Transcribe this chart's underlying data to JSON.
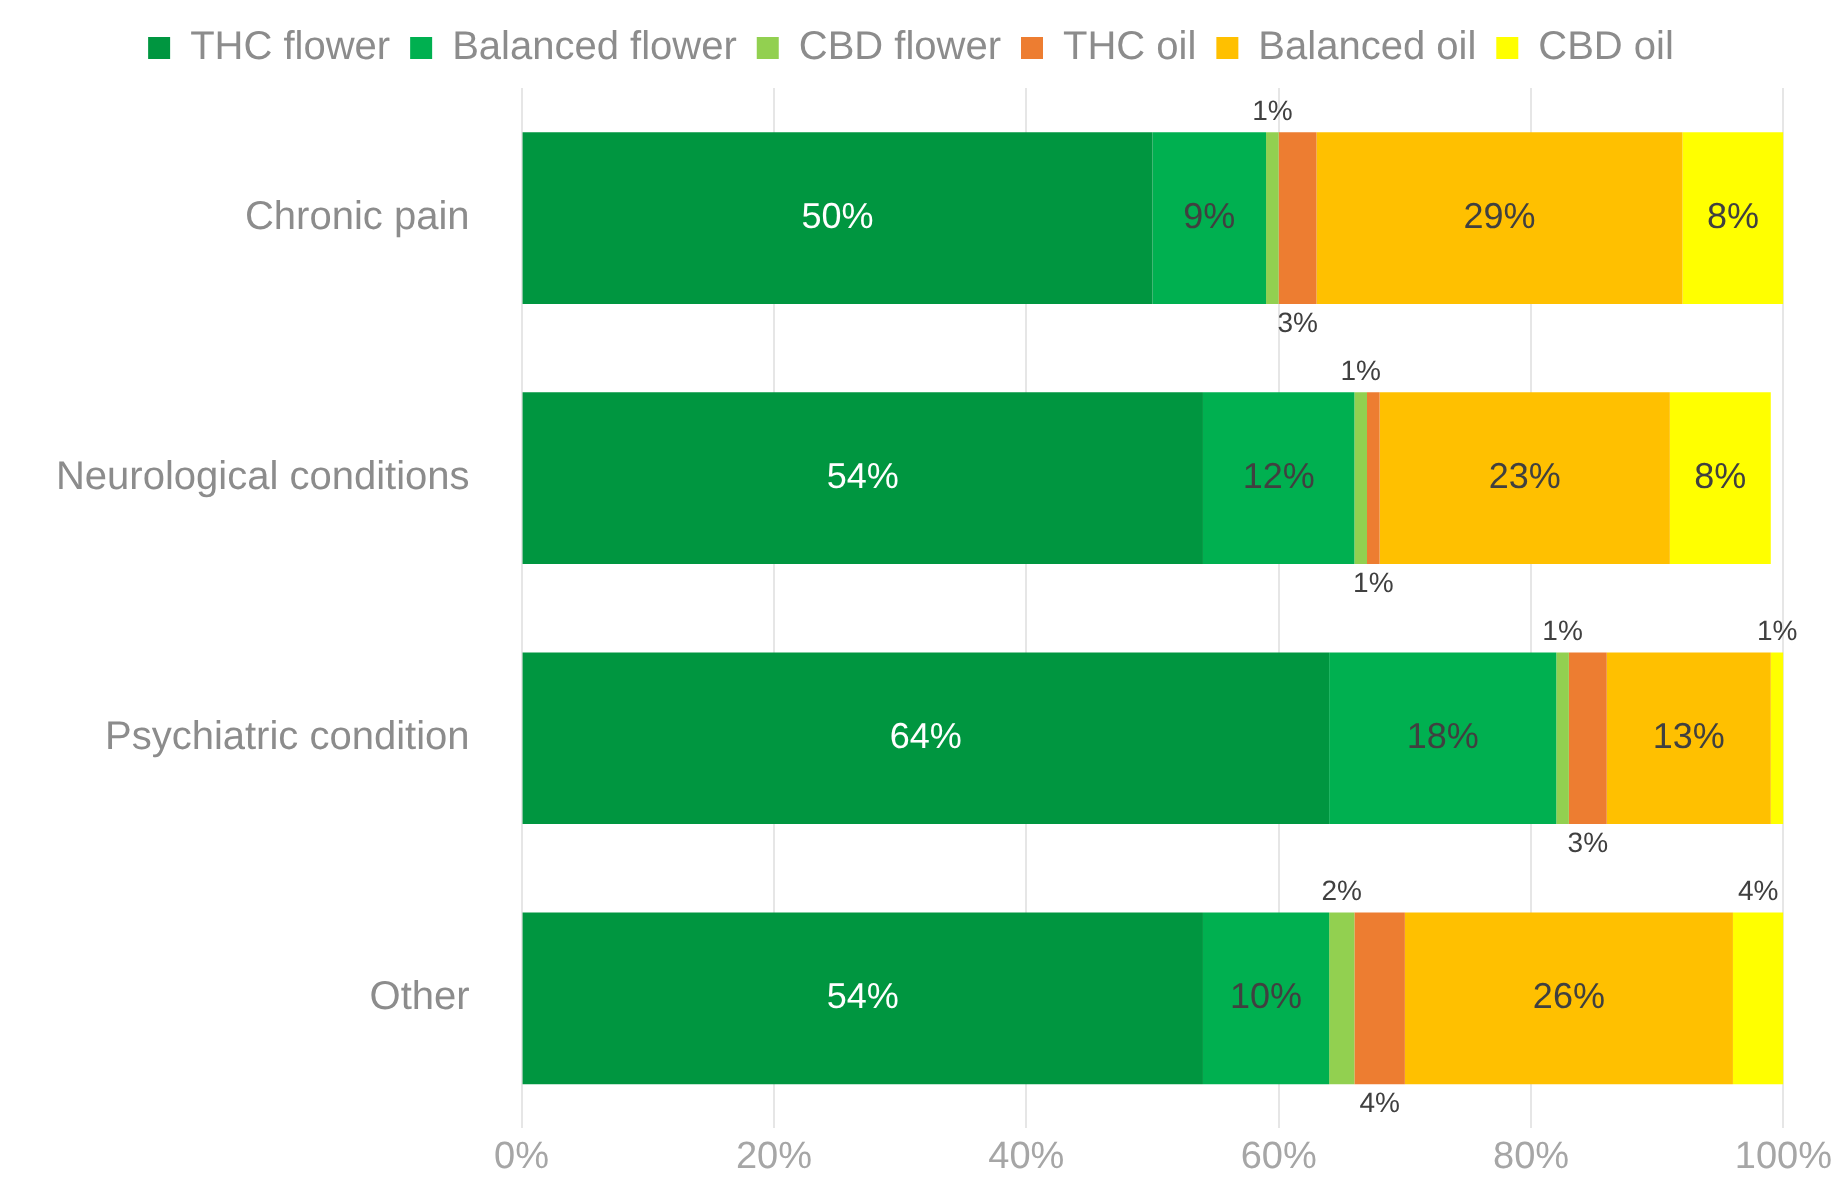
{
  "chart_data": {
    "type": "bar",
    "orientation": "horizontal",
    "stacked": true,
    "categories": [
      "Chronic pain",
      "Neurological conditions",
      "Psychiatric condition",
      "Other"
    ],
    "series": [
      {
        "name": "THC flower",
        "color": "#009640",
        "values": [
          50,
          54,
          64,
          54
        ],
        "value_labels": [
          "50%",
          "54%",
          "64%",
          "54%"
        ]
      },
      {
        "name": "Balanced flower",
        "color": "#00b050",
        "values": [
          9,
          12,
          18,
          10
        ],
        "value_labels": [
          "9%",
          "12%",
          "18%",
          "10%"
        ]
      },
      {
        "name": "CBD flower",
        "color": "#92d050",
        "values": [
          1,
          1,
          1,
          2
        ],
        "value_labels": [
          "1%",
          "1%",
          "1%",
          "2%"
        ]
      },
      {
        "name": "THC oil",
        "color": "#ed7d31",
        "values": [
          3,
          1,
          3,
          4
        ],
        "value_labels": [
          "3%",
          "1%",
          "3%",
          "4%"
        ]
      },
      {
        "name": "Balanced oil",
        "color": "#ffc000",
        "values": [
          29,
          23,
          13,
          26
        ],
        "value_labels": [
          "29%",
          "23%",
          "13%",
          "26%"
        ]
      },
      {
        "name": "CBD oil",
        "color": "#ffff00",
        "values": [
          8,
          8,
          1,
          4
        ],
        "value_labels": [
          "8%",
          "8%",
          "1%",
          "4%"
        ]
      }
    ],
    "xlim": [
      0,
      100
    ],
    "xticks": [
      {
        "value": 0,
        "label": "0%"
      },
      {
        "value": 20,
        "label": "20%"
      },
      {
        "value": 40,
        "label": "40%"
      },
      {
        "value": 60,
        "label": "60%"
      },
      {
        "value": 80,
        "label": "80%"
      },
      {
        "value": 100,
        "label": "100%"
      }
    ],
    "grid": "x",
    "legend": "top"
  }
}
